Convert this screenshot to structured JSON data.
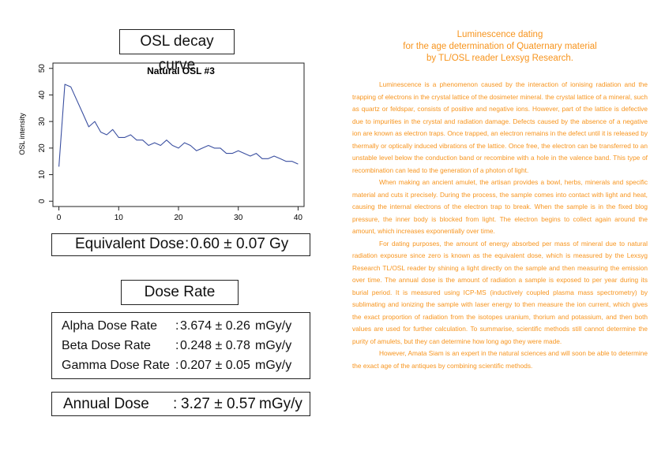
{
  "left_panel": {
    "osl_title": "OSL decay curve",
    "equivalent_dose": {
      "label": "Equivalent Dose",
      "sep": ":",
      "value": "0.60 ± 0.07",
      "unit": "Gy"
    },
    "dose_rate_title": "Dose Rate",
    "rates": [
      {
        "label": "Alpha Dose Rate",
        "sep": ":",
        "value": "3.674 ± 0.26",
        "unit": "mGy/y"
      },
      {
        "label": "Beta Dose Rate",
        "sep": ":",
        "value": "0.248 ± 0.78",
        "unit": "mGy/y"
      },
      {
        "label": "Gamma Dose Rate",
        "sep": ":",
        "value": "0.207 ± 0.05",
        "unit": "mGy/y"
      }
    ],
    "annual_dose": {
      "label": "Annual Dose",
      "sep": ":",
      "value": "3.27 ± 0.57",
      "unit": "mGy/y"
    }
  },
  "chart_data": {
    "type": "line",
    "title": "Natural OSL #3",
    "xlabel": "",
    "ylabel": "OSL intensity",
    "xlim": [
      -1,
      41
    ],
    "ylim": [
      -2,
      52
    ],
    "xticks": [
      0,
      10,
      20,
      30,
      40
    ],
    "yticks": [
      0,
      10,
      20,
      30,
      40,
      50
    ],
    "grid": false,
    "color": "#3A4FA0",
    "x": [
      0,
      1,
      2,
      3,
      4,
      5,
      6,
      7,
      8,
      9,
      10,
      11,
      12,
      13,
      14,
      15,
      16,
      17,
      18,
      19,
      20,
      21,
      22,
      23,
      24,
      25,
      26,
      27,
      28,
      29,
      30,
      31,
      32,
      33,
      34,
      35,
      36,
      37,
      38,
      39,
      40
    ],
    "y": [
      13,
      44,
      43,
      38,
      33,
      28,
      30,
      26,
      25,
      27,
      24,
      24,
      25,
      23,
      23,
      21,
      22,
      21,
      23,
      21,
      20,
      22,
      21,
      19,
      20,
      21,
      20,
      20,
      18,
      18,
      19,
      18,
      17,
      18,
      16,
      16,
      17,
      16,
      15,
      15,
      14
    ]
  },
  "article": {
    "heading": [
      "Luminescence dating",
      "for the age determination of Quaternary material",
      "by TL/OSL reader Lexsyg Research."
    ],
    "paragraphs": [
      "Luminescence is a phenomenon caused by the interaction of ionising radiation and the trapping of electrons in the crystal lattice of the dosimeter mineral. the crystal lattice of a mineral, such as quartz or feldspar, consists of positive and negative ions. However, part of the lattice is defective due to impurities in the crystal and radiation damage. Defects caused by the absence of a negative ion are known as electron traps. Once trapped, an electron remains in the defect until it is released by thermally or optically induced vibrations of the lattice. Once free, the electron can be transferred to an unstable level below the conduction band or recombine with a hole in the valence band. This type of recombination can lead to the generation of a photon of light.",
      "When making an ancient amulet, the artisan provides a bowl, herbs, minerals and specific material and cuts it precisely. During the process, the sample comes into contact with light and heat, causing the internal electrons of the electron trap to break. When the sample is in the fixed blog pressure, the inner body is blocked from light. The electron begins to collect again around the amount, which increases exponentially over time.",
      "For dating purposes, the amount of energy absorbed per mass of mineral due to natural radiation exposure since zero is known as the equivalent dose, which is measured by the Lexsyg Research TL/OSL reader by shining a light directly on the sample and then measuring the emission over time. The annual dose is the amount of radiation a sample is exposed to per year during its burial period. It is measured using ICP-MS (inductively coupled plasma mass spectrometry) by sublimating and ionizing the sample with laser energy to then measure the ion current, which gives the exact proportion of radiation from the isotopes uranium, thorium and potassium, and then both values are used for further calculation. To summarise, scientific methods still cannot determine the purity of amulets, but they can determine how long ago they were made.",
      "However, Amata Siam is an expert in the natural sciences and will soon be able to determine the exact age of the antiques by combining scientific methods."
    ]
  }
}
